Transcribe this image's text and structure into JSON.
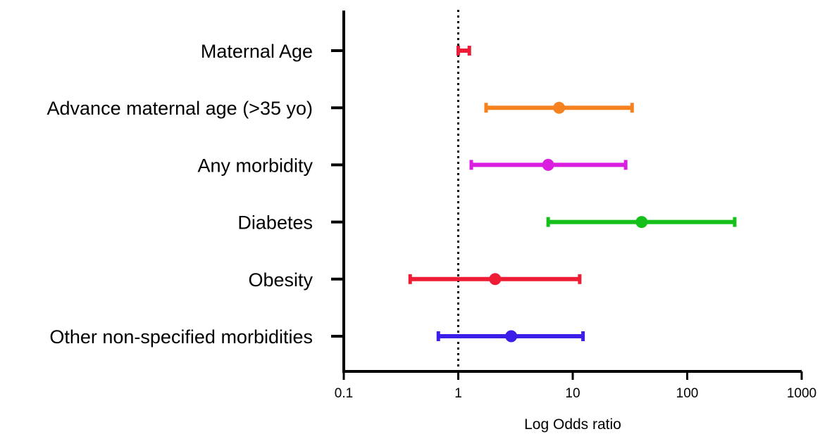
{
  "chart_data": {
    "type": "scatter",
    "subtype": "forest-plot",
    "title": "",
    "xlabel": "Log Odds ratio",
    "ylabel": "",
    "xscale": "log",
    "xlim": [
      0.1,
      1000
    ],
    "xticks": [
      "0.1",
      "1",
      "10",
      "100",
      "1000"
    ],
    "reference_line": {
      "x": 1,
      "style": "dotted"
    },
    "grid": false,
    "legend": "none",
    "categories": [
      "Maternal Age",
      "Advance maternal age (>35 yo)",
      "Any morbidity",
      "Diabetes",
      "Obesity",
      "Other non-specified morbidities"
    ],
    "points": [
      {
        "category": "Maternal Age",
        "or": 1.1,
        "lower": 1.0,
        "upper": 1.25,
        "color": "#ee1c34"
      },
      {
        "category": "Advance maternal age (>35 yo)",
        "or": 7.6,
        "lower": 1.75,
        "upper": 33,
        "color": "#f5821f"
      },
      {
        "category": "Any morbidity",
        "or": 6.1,
        "lower": 1.3,
        "upper": 29,
        "color": "#d91ee0"
      },
      {
        "category": "Diabetes",
        "or": 40,
        "lower": 6.1,
        "upper": 260,
        "color": "#15c01a"
      },
      {
        "category": "Obesity",
        "or": 2.1,
        "lower": 0.38,
        "upper": 11.5,
        "color": "#ee1c34"
      },
      {
        "category": "Other non-specified morbidities",
        "or": 2.9,
        "lower": 0.67,
        "upper": 12.3,
        "color": "#3b1ee8"
      }
    ]
  }
}
